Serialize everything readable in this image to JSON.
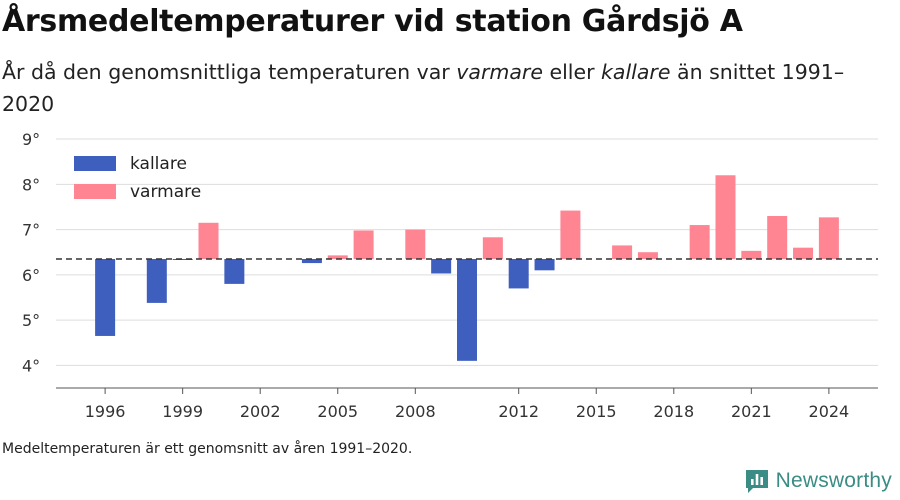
{
  "header": {
    "title": "Årsmedeltemperaturer vid station Gårdsjö A",
    "subtitle_part1": "År då den genomsnittliga temperaturen var ",
    "subtitle_warm_word": "varmare",
    "subtitle_part2": " eller ",
    "subtitle_cold_word": "kallare",
    "subtitle_part3": " än snittet 1991–2020"
  },
  "footer": {
    "note": "Medeltemperaturen är ett genomsnitt av åren 1991–2020.",
    "brand": "Newsworthy"
  },
  "chart_data": {
    "type": "bar",
    "baseline": 6.35,
    "ylim": [
      3.5,
      9.2
    ],
    "y_ticks": [
      4,
      5,
      6,
      7,
      8,
      9
    ],
    "y_tick_suffix": "°",
    "xlim": [
      1994.1,
      2025.9
    ],
    "x_ticks": [
      1996,
      1999,
      2002,
      2005,
      2008,
      2012,
      2015,
      2018,
      2021,
      2024
    ],
    "grid": true,
    "legend_position": "top-left",
    "legend": [
      {
        "key": "kallare",
        "label": "kallare",
        "color": "#3f5fbe"
      },
      {
        "key": "varmare",
        "label": "varmare",
        "color": "#ff8593"
      }
    ],
    "colors": {
      "colder": "#3f5fbe",
      "warmer": "#ff8593",
      "baseline": "#333333",
      "grid": "#dddddd"
    },
    "values": [
      {
        "year": 1996,
        "value": 4.65
      },
      {
        "year": 1998,
        "value": 5.38
      },
      {
        "year": 1999,
        "value": 6.34
      },
      {
        "year": 2000,
        "value": 7.15
      },
      {
        "year": 2001,
        "value": 5.8
      },
      {
        "year": 2004,
        "value": 6.26
      },
      {
        "year": 2005,
        "value": 6.43
      },
      {
        "year": 2006,
        "value": 6.98
      },
      {
        "year": 2008,
        "value": 7.0
      },
      {
        "year": 2009,
        "value": 6.03
      },
      {
        "year": 2010,
        "value": 4.1
      },
      {
        "year": 2011,
        "value": 6.83
      },
      {
        "year": 2012,
        "value": 5.7
      },
      {
        "year": 2013,
        "value": 6.1
      },
      {
        "year": 2014,
        "value": 7.42
      },
      {
        "year": 2016,
        "value": 6.65
      },
      {
        "year": 2017,
        "value": 6.5
      },
      {
        "year": 2019,
        "value": 7.1
      },
      {
        "year": 2020,
        "value": 8.2
      },
      {
        "year": 2021,
        "value": 6.53
      },
      {
        "year": 2022,
        "value": 7.3
      },
      {
        "year": 2023,
        "value": 6.6
      },
      {
        "year": 2024,
        "value": 7.27
      }
    ]
  }
}
